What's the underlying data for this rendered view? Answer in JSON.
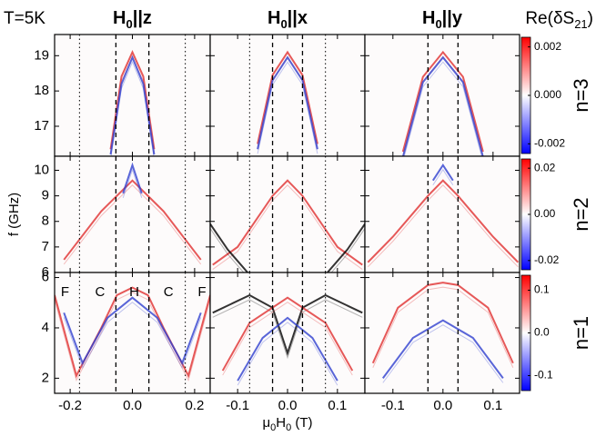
{
  "chart_data": {
    "type": "heatmap",
    "temperature": "T=5K",
    "ylabel": "f (GHz)",
    "xlabel": {
      "a": "μ",
      "b": "0",
      "c": "H",
      "d": "0",
      "e": " (T)"
    },
    "colorbar_title": {
      "a": "Re(δS",
      "b": "21",
      "c": ")"
    },
    "colorbar_colors": [
      "#0000ff",
      "#ffffff",
      "#ff0000"
    ],
    "region_labels": [
      {
        "text": "F",
        "x": -0.23
      },
      {
        "text": "C",
        "x": -0.12
      },
      {
        "text": "H",
        "x": -0.01
      },
      {
        "text": "C",
        "x": 0.1
      },
      {
        "text": "F",
        "x": 0.21
      }
    ],
    "columns": [
      {
        "title": {
          "main": "H",
          "sub": "0",
          "rest": "||z"
        },
        "xlim": [
          -0.25,
          0.25
        ],
        "xticks": [
          -0.2,
          {
            "value": 0,
            "label": "0.0"
          },
          0.2
        ],
        "dashed": [
          -0.053,
          0.053
        ],
        "dotted": [
          -0.17,
          0.17
        ]
      },
      {
        "title": {
          "main": "H",
          "sub": "0",
          "rest": "||x"
        },
        "xlim": [
          -0.155,
          0.155
        ],
        "xticks": [
          -0.1,
          {
            "value": 0,
            "label": "0.0"
          },
          0.1
        ],
        "dashed": [
          -0.03,
          0.03
        ],
        "dotted": [
          -0.076,
          0.076
        ]
      },
      {
        "title": {
          "main": "H",
          "sub": "0",
          "rest": "||y"
        },
        "xlim": [
          -0.156,
          0.153
        ],
        "xticks": [
          -0.1,
          {
            "value": 0,
            "label": "0.0"
          },
          0.1
        ],
        "dashed": [
          -0.03,
          0.03
        ],
        "dotted": []
      }
    ],
    "rows": [
      {
        "label": "n=3",
        "ylim": [
          16.15,
          19.6
        ],
        "yticks": [
          17,
          18,
          19
        ],
        "clim": [
          -0.0024,
          0.0024
        ],
        "cticks": [
          0.002,
          {
            "value": 0,
            "label": "0.000"
          },
          -0.002
        ],
        "panels": [
          {
            "curves": [
              {
                "color": "#e03030",
                "x": [
                  -0.07,
                  -0.035,
                  0,
                  0.035,
                  0.07
                ],
                "y": [
                  16.35,
                  18.41,
                  19.1,
                  18.41,
                  16.35
                ]
              },
              {
                "color": "#3040d0",
                "x": [
                  -0.07,
                  -0.035,
                  0,
                  0.035,
                  0.07
                ],
                "y": [
                  16.2,
                  18.2,
                  18.95,
                  18.2,
                  16.2
                ]
              }
            ]
          },
          {
            "curves": [
              {
                "color": "#e03030",
                "x": [
                  -0.06,
                  -0.03,
                  0,
                  0.03,
                  0.06
                ],
                "y": [
                  16.5,
                  18.45,
                  19.1,
                  18.45,
                  16.5
                ]
              },
              {
                "color": "#3040d0",
                "x": [
                  -0.06,
                  -0.03,
                  0,
                  0.03,
                  0.06
                ],
                "y": [
                  16.35,
                  18.3,
                  18.95,
                  18.3,
                  16.35
                ]
              }
            ]
          },
          {
            "curves": [
              {
                "color": "#e03030",
                "x": [
                  -0.08,
                  -0.04,
                  0,
                  0.04,
                  0.08
                ],
                "y": [
                  16.28,
                  18.4,
                  19.1,
                  18.4,
                  16.28
                ]
              },
              {
                "color": "#3040d0",
                "x": [
                  -0.08,
                  -0.04,
                  0,
                  0.04,
                  0.08
                ],
                "y": [
                  16.13,
                  18.25,
                  18.95,
                  18.25,
                  16.13
                ]
              }
            ]
          }
        ]
      },
      {
        "label": "n=2",
        "ylim": [
          6,
          10.55
        ],
        "yticks": [
          6,
          7,
          8,
          9,
          10
        ],
        "clim": [
          -0.024,
          0.024
        ],
        "cticks": [
          0.02,
          {
            "value": 0,
            "label": "0.00"
          },
          -0.02
        ],
        "panels": [
          {
            "curves": [
              {
                "color": "#e03030",
                "x": [
                  -0.22,
                  -0.1,
                  -0.05,
                  0,
                  0.05,
                  0.1,
                  0.22
                ],
                "y": [
                  6.5,
                  8.4,
                  9.0,
                  9.6,
                  9.0,
                  8.4,
                  6.5
                ]
              },
              {
                "color": "#3040d0",
                "x": [
                  -0.03,
                  0,
                  0.03
                ],
                "y": [
                  9.1,
                  10.2,
                  9.1
                ]
              }
            ]
          },
          {
            "curves": [
              {
                "color": "#e03030",
                "x": [
                  -0.15,
                  -0.1,
                  -0.03,
                  0,
                  0.03,
                  0.1,
                  0.15
                ],
                "y": [
                  6.3,
                  7.0,
                  9.0,
                  9.6,
                  9.0,
                  7.0,
                  6.3
                ]
              },
              {
                "color": "#000000",
                "x": [
                  -0.155,
                  -0.12,
                  -0.08
                ],
                "y": [
                  7.9,
                  6.9,
                  6.0
                ]
              },
              {
                "color": "#000000",
                "x": [
                  0.08,
                  0.12,
                  0.155
                ],
                "y": [
                  6.0,
                  6.9,
                  7.9
                ]
              }
            ]
          },
          {
            "curves": [
              {
                "color": "#e03030",
                "x": [
                  -0.15,
                  -0.1,
                  -0.03,
                  0,
                  0.03,
                  0.1,
                  0.15
                ],
                "y": [
                  6.4,
                  7.4,
                  9.0,
                  9.6,
                  9.0,
                  7.4,
                  6.4
                ]
              },
              {
                "color": "#3040d0",
                "x": [
                  -0.02,
                  0,
                  0.02
                ],
                "y": [
                  9.6,
                  10.2,
                  9.6
                ]
              }
            ]
          }
        ]
      },
      {
        "label": "n=1",
        "ylim": [
          1.4,
          6.2
        ],
        "yticks": [
          2,
          4,
          6
        ],
        "clim": [
          -0.135,
          0.135
        ],
        "cticks": [
          0.1,
          {
            "value": 0,
            "label": "0.0"
          },
          -0.1
        ],
        "panels": [
          {
            "curves": [
              {
                "color": "#e03030",
                "x": [
                  -0.25,
                  -0.18,
                  -0.1,
                  -0.05,
                  0,
                  0.05,
                  0.1,
                  0.18,
                  0.25
                ],
                "y": [
                  5.3,
                  2.1,
                  4.0,
                  5.3,
                  5.6,
                  5.3,
                  4.0,
                  2.1,
                  5.3
                ]
              },
              {
                "color": "#3040d0",
                "x": [
                  -0.22,
                  -0.16,
                  -0.08,
                  0,
                  0.08,
                  0.16,
                  0.22
                ],
                "y": [
                  4.6,
                  2.6,
                  4.4,
                  5.2,
                  4.4,
                  2.6,
                  4.6
                ]
              }
            ]
          },
          {
            "curves": [
              {
                "color": "#000000",
                "x": [
                  -0.15,
                  -0.076,
                  -0.03,
                  0,
                  0.03,
                  0.076,
                  0.15
                ],
                "y": [
                  4.6,
                  5.3,
                  4.8,
                  3.0,
                  4.8,
                  5.3,
                  4.6
                ]
              },
              {
                "color": "#e03030",
                "x": [
                  -0.13,
                  -0.076,
                  0,
                  0.076,
                  0.13
                ],
                "y": [
                  2.3,
                  4.2,
                  5.2,
                  4.2,
                  2.3
                ]
              },
              {
                "color": "#3040d0",
                "x": [
                  -0.1,
                  -0.05,
                  0,
                  0.05,
                  0.1
                ],
                "y": [
                  1.9,
                  3.6,
                  4.4,
                  3.6,
                  1.9
                ]
              }
            ]
          },
          {
            "curves": [
              {
                "color": "#e03030",
                "x": [
                  -0.14,
                  -0.09,
                  -0.03,
                  0,
                  0.03,
                  0.09,
                  0.14
                ],
                "y": [
                  2.6,
                  4.8,
                  5.7,
                  5.8,
                  5.7,
                  4.8,
                  2.6
                ]
              },
              {
                "color": "#3040d0",
                "x": [
                  -0.12,
                  -0.06,
                  0,
                  0.06,
                  0.12
                ],
                "y": [
                  2.0,
                  3.6,
                  4.3,
                  3.6,
                  2.0
                ]
              }
            ]
          }
        ]
      }
    ]
  }
}
